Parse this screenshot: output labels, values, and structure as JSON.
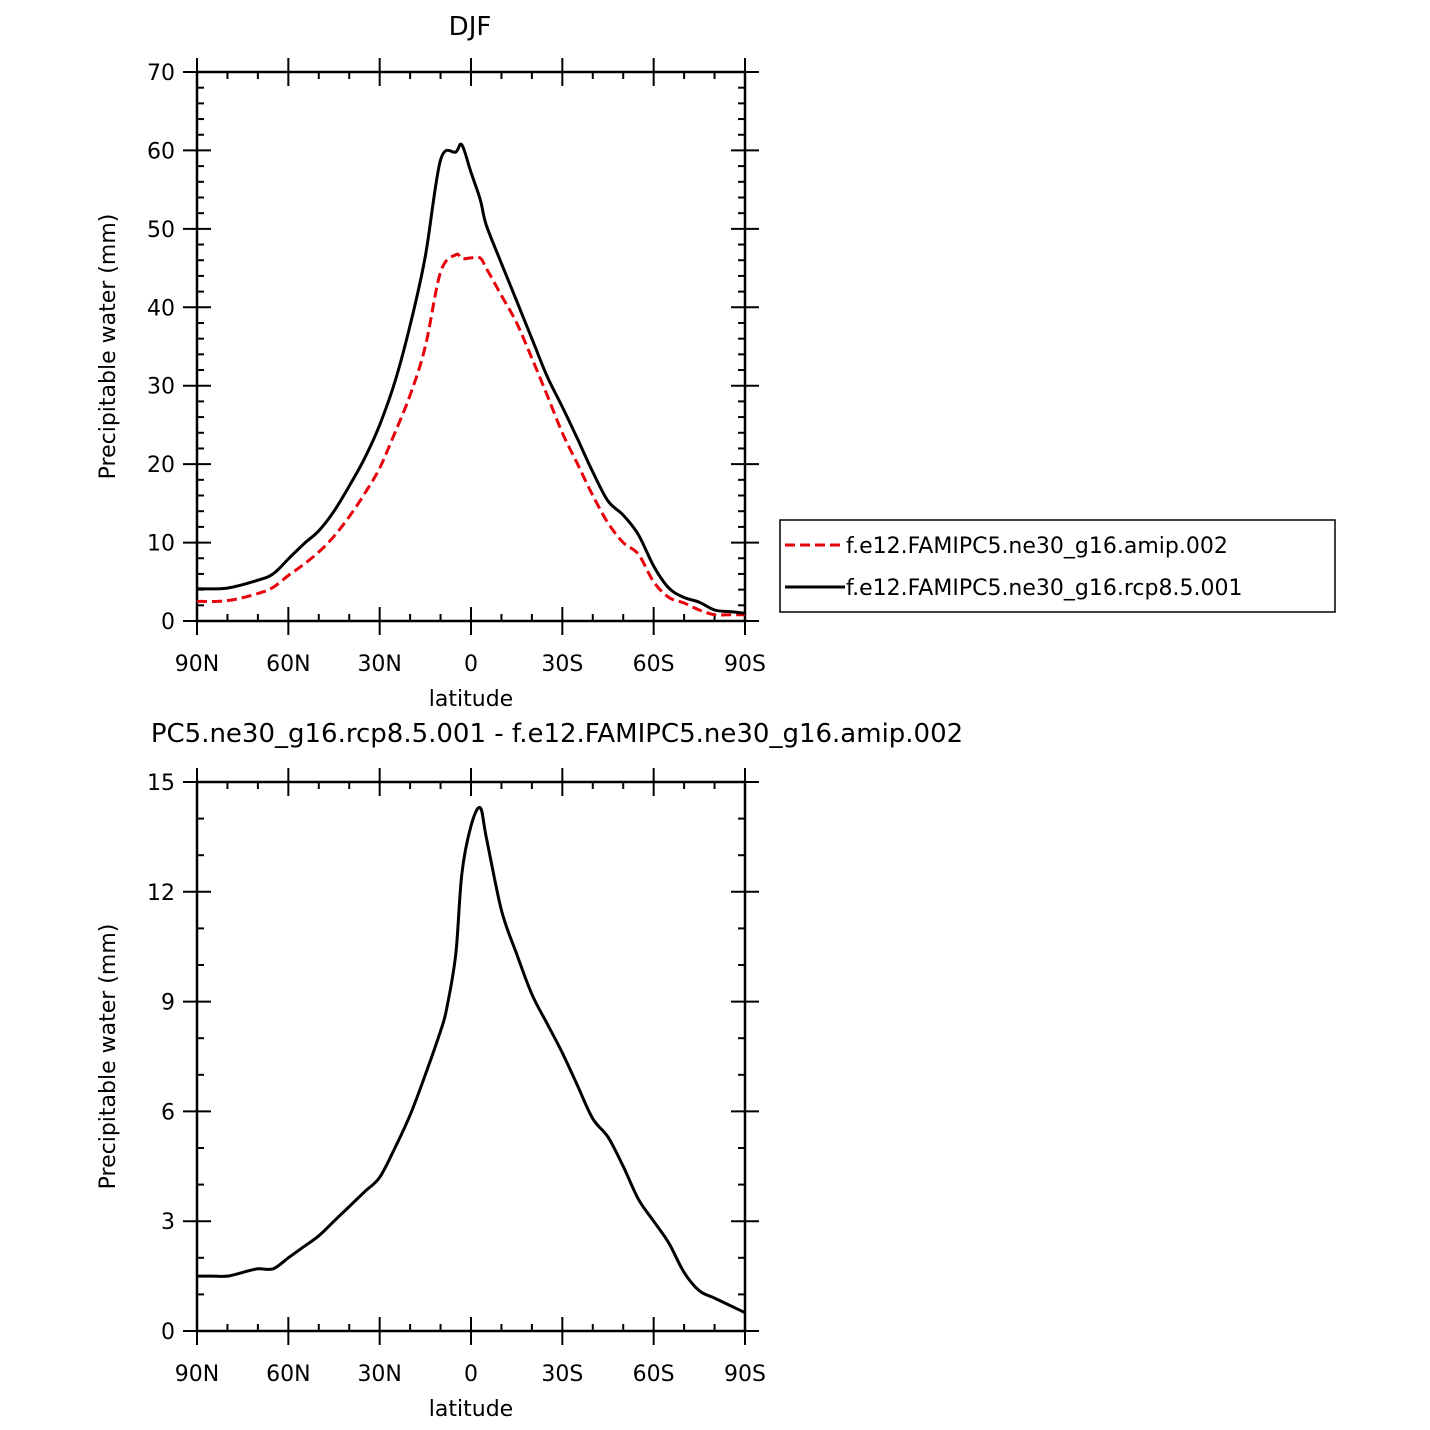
{
  "chart_data": [
    {
      "type": "line",
      "title": "DJF",
      "xlabel": "latitude",
      "ylabel": "Precipitable water (mm)",
      "xlim": [
        90,
        -90
      ],
      "ylim": [
        0,
        70
      ],
      "x_ticks": [
        90,
        60,
        30,
        0,
        -30,
        -60,
        -90
      ],
      "x_tick_labels": [
        "90N",
        "60N",
        "30N",
        "0",
        "30S",
        "60S",
        "90S"
      ],
      "y_ticks": [
        0,
        10,
        20,
        30,
        40,
        50,
        60,
        70
      ],
      "y_tick_labels": [
        "0",
        "10",
        "20",
        "30",
        "40",
        "50",
        "60",
        "70"
      ],
      "legend": "right",
      "x": [
        90,
        80,
        70,
        65,
        60,
        55,
        50,
        45,
        40,
        35,
        30,
        25,
        20,
        15,
        10,
        5,
        3,
        0,
        -3,
        -5,
        -10,
        -15,
        -20,
        -25,
        -30,
        -35,
        -40,
        -45,
        -50,
        -55,
        -60,
        -65,
        -70,
        -75,
        -80,
        -85,
        -90
      ],
      "series": [
        {
          "name": "f.e12.FAMIPC5.ne30_g16.amip.002",
          "color": "#e8000b",
          "dash": "dashed",
          "values": [
            2.5,
            2.6,
            3.5,
            4.3,
            5.8,
            7.2,
            8.8,
            10.8,
            13.3,
            16.2,
            19.5,
            24.0,
            28.8,
            35.0,
            44.5,
            46.7,
            46.2,
            46.3,
            46.3,
            45.0,
            41.5,
            38.0,
            33.5,
            28.8,
            24.0,
            20.0,
            16.0,
            12.5,
            10.0,
            8.5,
            5.0,
            3.0,
            2.3,
            1.4,
            0.8,
            0.8,
            0.8
          ]
        },
        {
          "name": "f.e12.FAMIPC5.ne30_g16.rcp8.5.001",
          "color": "#000000",
          "dash": "solid",
          "values": [
            4.1,
            4.2,
            5.2,
            6.0,
            7.9,
            9.8,
            11.5,
            14.0,
            17.2,
            20.7,
            25.0,
            30.5,
            37.7,
            46.5,
            58.8,
            59.8,
            60.7,
            57.2,
            53.8,
            50.5,
            45.6,
            40.8,
            36.0,
            31.2,
            27.3,
            23.2,
            19.0,
            15.3,
            13.5,
            11.0,
            7.0,
            4.2,
            3.0,
            2.4,
            1.4,
            1.2,
            1.0
          ]
        }
      ]
    },
    {
      "type": "line",
      "title": "PC5.ne30_g16.rcp8.5.001 - f.e12.FAMIPC5.ne30_g16.amip.002",
      "xlabel": "latitude",
      "ylabel": "Precipitable water (mm)",
      "xlim": [
        90,
        -90
      ],
      "ylim": [
        0,
        15
      ],
      "x_ticks": [
        90,
        60,
        30,
        0,
        -30,
        -60,
        -90
      ],
      "x_tick_labels": [
        "90N",
        "60N",
        "30N",
        "0",
        "30S",
        "60S",
        "90S"
      ],
      "y_ticks": [
        0,
        3,
        6,
        9,
        12,
        15
      ],
      "y_tick_labels": [
        "0",
        "3",
        "6",
        "9",
        "12",
        "15"
      ],
      "x": [
        90,
        85,
        80,
        75,
        70,
        65,
        60,
        55,
        50,
        45,
        40,
        35,
        30,
        25,
        20,
        15,
        10,
        8,
        5,
        3,
        0,
        -3,
        -5,
        -10,
        -15,
        -20,
        -25,
        -30,
        -35,
        -40,
        -45,
        -50,
        -55,
        -60,
        -65,
        -70,
        -75,
        -80,
        -85,
        -90
      ],
      "series": [
        {
          "color": "#000000",
          "dash": "solid",
          "values": [
            1.5,
            1.5,
            1.5,
            1.6,
            1.7,
            1.7,
            2.0,
            2.3,
            2.6,
            3.0,
            3.4,
            3.8,
            4.2,
            5.0,
            5.9,
            7.0,
            8.2,
            8.8,
            10.3,
            12.5,
            13.8,
            14.3,
            13.5,
            11.5,
            10.3,
            9.2,
            8.4,
            7.6,
            6.7,
            5.8,
            5.3,
            4.5,
            3.6,
            3.0,
            2.4,
            1.6,
            1.1,
            0.9,
            0.7,
            0.5
          ]
        }
      ]
    }
  ]
}
